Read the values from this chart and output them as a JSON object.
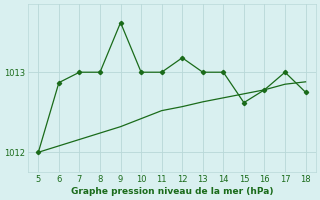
{
  "x": [
    5,
    6,
    7,
    8,
    9,
    10,
    11,
    12,
    13,
    14,
    15,
    16,
    17,
    18
  ],
  "y_line": [
    1012.0,
    1012.87,
    1013.0,
    1013.0,
    1013.62,
    1013.0,
    1013.0,
    1013.18,
    1013.0,
    1013.0,
    1012.62,
    1012.78,
    1013.0,
    1012.75
  ],
  "y_trend": [
    1012.0,
    1012.08,
    1012.16,
    1012.24,
    1012.32,
    1012.42,
    1012.52,
    1012.57,
    1012.63,
    1012.68,
    1012.73,
    1012.78,
    1012.85,
    1012.88
  ],
  "yticks": [
    1012,
    1013
  ],
  "xticks": [
    5,
    6,
    7,
    8,
    9,
    10,
    11,
    12,
    13,
    14,
    15,
    16,
    17,
    18
  ],
  "xlabel": "Graphe pression niveau de la mer (hPa)",
  "line_color": "#1a6b1a",
  "trend_color": "#1a6b1a",
  "bg_color": "#d9f0f0",
  "grid_color": "#b8d8d8",
  "text_color": "#1a6b1a",
  "xlim": [
    4.5,
    18.5
  ],
  "ylim": [
    1011.75,
    1013.85
  ]
}
